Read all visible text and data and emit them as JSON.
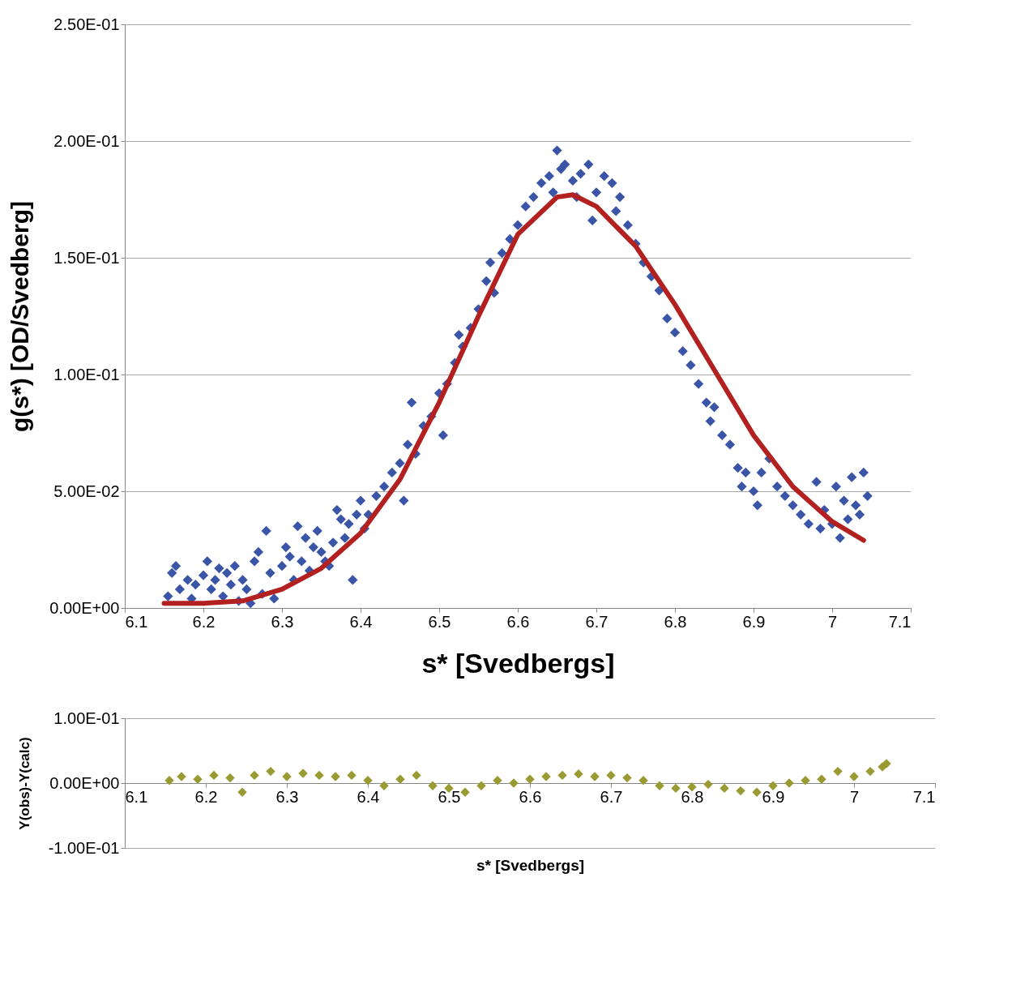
{
  "chart_data": [
    {
      "type": "scatter",
      "xlabel": "s* [Svedbergs]",
      "ylabel": "g(s*) [OD/Svedberg]",
      "xlim": [
        6.1,
        7.1
      ],
      "xticks": [
        6.1,
        6.2,
        6.3,
        6.4,
        6.5,
        6.6,
        6.7,
        6.8,
        6.9,
        7,
        7.1
      ],
      "ylim": [
        0,
        0.25
      ],
      "yticks": [
        {
          "value": 0,
          "label": "0.00E+00"
        },
        {
          "value": 0.05,
          "label": "5.00E-02"
        },
        {
          "value": 0.1,
          "label": "1.00E-01"
        },
        {
          "value": 0.15,
          "label": "1.50E-01"
        },
        {
          "value": 0.2,
          "label": "2.00E-01"
        },
        {
          "value": 0.25,
          "label": "2.50E-01"
        }
      ],
      "grid": "y",
      "series": [
        {
          "marker": "diamond",
          "color": "#3a55a8",
          "x": [
            6.155,
            6.16,
            6.165,
            6.17,
            6.18,
            6.185,
            6.19,
            6.2,
            6.205,
            6.21,
            6.215,
            6.22,
            6.225,
            6.23,
            6.235,
            6.24,
            6.245,
            6.25,
            6.255,
            6.26,
            6.265,
            6.27,
            6.275,
            6.28,
            6.285,
            6.29,
            6.3,
            6.305,
            6.31,
            6.315,
            6.32,
            6.325,
            6.33,
            6.335,
            6.34,
            6.345,
            6.35,
            6.355,
            6.36,
            6.365,
            6.37,
            6.375,
            6.38,
            6.385,
            6.39,
            6.395,
            6.4,
            6.405,
            6.41,
            6.42,
            6.43,
            6.44,
            6.45,
            6.455,
            6.46,
            6.465,
            6.47,
            6.48,
            6.49,
            6.5,
            6.505,
            6.51,
            6.52,
            6.525,
            6.53,
            6.54,
            6.55,
            6.56,
            6.565,
            6.57,
            6.58,
            6.59,
            6.6,
            6.61,
            6.62,
            6.63,
            6.64,
            6.645,
            6.65,
            6.655,
            6.66,
            6.67,
            6.675,
            6.68,
            6.69,
            6.695,
            6.7,
            6.71,
            6.72,
            6.725,
            6.73,
            6.74,
            6.75,
            6.76,
            6.77,
            6.78,
            6.79,
            6.8,
            6.81,
            6.82,
            6.83,
            6.84,
            6.845,
            6.85,
            6.86,
            6.87,
            6.88,
            6.885,
            6.89,
            6.9,
            6.905,
            6.91,
            6.92,
            6.93,
            6.94,
            6.95,
            6.96,
            6.97,
            6.98,
            6.985,
            6.99,
            7.0,
            7.005,
            7.01,
            7.015,
            7.02,
            7.025,
            7.03,
            7.035,
            7.04,
            7.045
          ],
          "values": [
            0.005,
            0.015,
            0.018,
            0.008,
            0.012,
            0.004,
            0.01,
            0.014,
            0.02,
            0.008,
            0.012,
            0.017,
            0.005,
            0.015,
            0.01,
            0.018,
            0.003,
            0.012,
            0.008,
            0.002,
            0.02,
            0.024,
            0.006,
            0.033,
            0.015,
            0.004,
            0.018,
            0.026,
            0.022,
            0.012,
            0.035,
            0.02,
            0.03,
            0.016,
            0.026,
            0.033,
            0.024,
            0.02,
            0.018,
            0.028,
            0.042,
            0.038,
            0.03,
            0.036,
            0.012,
            0.04,
            0.046,
            0.034,
            0.04,
            0.048,
            0.052,
            0.058,
            0.062,
            0.046,
            0.07,
            0.088,
            0.066,
            0.078,
            0.082,
            0.092,
            0.074,
            0.096,
            0.105,
            0.117,
            0.112,
            0.12,
            0.128,
            0.14,
            0.148,
            0.135,
            0.152,
            0.158,
            0.164,
            0.172,
            0.176,
            0.182,
            0.185,
            0.178,
            0.196,
            0.188,
            0.19,
            0.183,
            0.176,
            0.186,
            0.19,
            0.166,
            0.178,
            0.185,
            0.182,
            0.17,
            0.176,
            0.164,
            0.156,
            0.148,
            0.142,
            0.136,
            0.124,
            0.118,
            0.11,
            0.104,
            0.096,
            0.088,
            0.08,
            0.086,
            0.074,
            0.07,
            0.06,
            0.052,
            0.058,
            0.05,
            0.044,
            0.058,
            0.064,
            0.052,
            0.048,
            0.044,
            0.04,
            0.036,
            0.054,
            0.034,
            0.042,
            0.036,
            0.052,
            0.03,
            0.046,
            0.038,
            0.056,
            0.044,
            0.04,
            0.058,
            0.048
          ]
        },
        {
          "type": "line",
          "color": "#b22020",
          "x": [
            6.15,
            6.2,
            6.25,
            6.3,
            6.35,
            6.4,
            6.45,
            6.5,
            6.55,
            6.6,
            6.65,
            6.67,
            6.7,
            6.75,
            6.8,
            6.85,
            6.9,
            6.95,
            7.0,
            7.04
          ],
          "values": [
            0.002,
            0.002,
            0.003,
            0.008,
            0.017,
            0.032,
            0.055,
            0.088,
            0.125,
            0.16,
            0.176,
            0.177,
            0.172,
            0.155,
            0.13,
            0.102,
            0.074,
            0.052,
            0.037,
            0.029
          ]
        }
      ]
    },
    {
      "type": "scatter",
      "xlabel": "s* [Svedbergs]",
      "ylabel": "Y(obs)-Y(calc)",
      "xlim": [
        6.1,
        7.1
      ],
      "xticks": [
        6.1,
        6.2,
        6.3,
        6.4,
        6.5,
        6.6,
        6.7,
        6.8,
        6.9,
        7,
        7.1
      ],
      "ylim": [
        -0.1,
        0.1
      ],
      "yticks": [
        {
          "value": -0.1,
          "label": "-1.00E-01"
        },
        {
          "value": 0,
          "label": "0.00E+00"
        },
        {
          "value": 0.1,
          "label": "1.00E-01"
        }
      ],
      "grid": "y",
      "series": [
        {
          "marker": "diamond",
          "color": "#9a9a32",
          "x": [
            6.155,
            6.17,
            6.19,
            6.21,
            6.23,
            6.245,
            6.26,
            6.28,
            6.3,
            6.32,
            6.34,
            6.36,
            6.38,
            6.4,
            6.42,
            6.44,
            6.46,
            6.48,
            6.5,
            6.52,
            6.54,
            6.56,
            6.58,
            6.6,
            6.62,
            6.64,
            6.66,
            6.68,
            6.7,
            6.72,
            6.74,
            6.76,
            6.78,
            6.8,
            6.82,
            6.84,
            6.86,
            6.88,
            6.9,
            6.92,
            6.94,
            6.96,
            6.98,
            7.0,
            7.02,
            7.035,
            7.04
          ],
          "values": [
            0.004,
            0.01,
            0.006,
            0.012,
            0.008,
            -0.014,
            0.012,
            0.018,
            0.01,
            0.015,
            0.012,
            0.01,
            0.012,
            0.004,
            -0.004,
            0.006,
            0.012,
            -0.004,
            -0.008,
            -0.014,
            -0.004,
            0.004,
            0.0,
            0.006,
            0.01,
            0.012,
            0.014,
            0.01,
            0.012,
            0.008,
            0.004,
            -0.004,
            -0.008,
            -0.006,
            -0.002,
            -0.008,
            -0.012,
            -0.014,
            -0.004,
            0.0,
            0.004,
            0.006,
            0.018,
            0.01,
            0.018,
            0.025,
            0.03
          ]
        }
      ]
    }
  ]
}
